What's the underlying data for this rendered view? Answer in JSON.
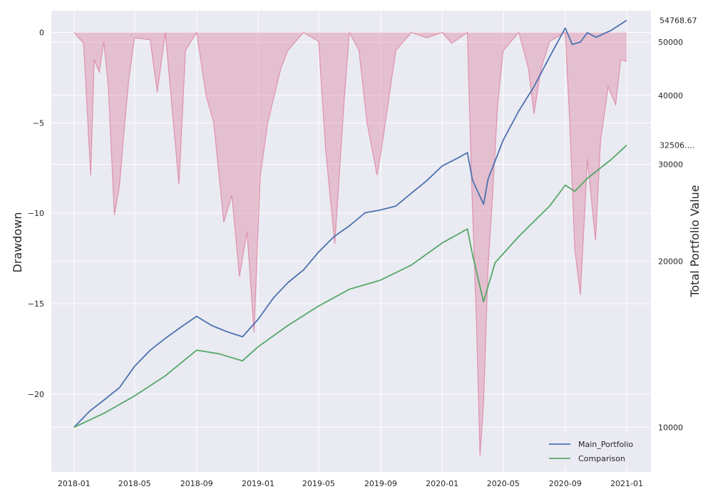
{
  "chart_data": {
    "type": "line",
    "title": "",
    "xlabel": "",
    "ylabel_left": "Drawdown",
    "ylabel_right": "Total Portfolio Value",
    "xlim": [
      "2017-11-17",
      "2021-02-18"
    ],
    "ylim_left": [
      -24.3,
      1.2
    ],
    "ylim_right": [
      8300,
      57000
    ],
    "x_ticks": [
      "2018-01",
      "2018-05",
      "2018-09",
      "2019-01",
      "2019-05",
      "2019-09",
      "2020-01",
      "2020-05",
      "2020-09",
      "2021-01"
    ],
    "y_ticks_left": [
      0,
      -5,
      -10,
      -15,
      -20
    ],
    "y_ticks_left_labels": [
      "0",
      "−5",
      "−10",
      "−15",
      "−20"
    ],
    "y_ticks_right": [
      10000,
      20000,
      30000,
      40000,
      50000
    ],
    "y_ticks_right_labels": [
      "10000",
      "20000",
      "30000",
      "40000",
      "50000"
    ],
    "end_value_labels": [
      "54768.67",
      "32506.…"
    ],
    "grid": true,
    "legend_position": "lower-right",
    "series": [
      {
        "name": "Main_Portfolio",
        "axis": "right",
        "color": "#4c72b0",
        "points": [
          [
            "2018-01-01",
            10000
          ],
          [
            "2018-02-01",
            10700
          ],
          [
            "2018-03-01",
            11200
          ],
          [
            "2018-04-01",
            11800
          ],
          [
            "2018-05-01",
            12900
          ],
          [
            "2018-06-01",
            13800
          ],
          [
            "2018-07-01",
            14500
          ],
          [
            "2018-08-01",
            15200
          ],
          [
            "2018-09-01",
            15900
          ],
          [
            "2018-10-01",
            15300
          ],
          [
            "2018-11-01",
            14900
          ],
          [
            "2018-12-01",
            14600
          ],
          [
            "2019-01-01",
            15700
          ],
          [
            "2019-02-01",
            17200
          ],
          [
            "2019-03-01",
            18300
          ],
          [
            "2019-04-01",
            19300
          ],
          [
            "2019-05-01",
            20800
          ],
          [
            "2019-06-01",
            22200
          ],
          [
            "2019-07-01",
            23200
          ],
          [
            "2019-08-01",
            24500
          ],
          [
            "2019-09-01",
            24800
          ],
          [
            "2019-10-01",
            25200
          ],
          [
            "2019-11-01",
            26600
          ],
          [
            "2019-12-01",
            28000
          ],
          [
            "2020-01-01",
            29800
          ],
          [
            "2020-02-01",
            30800
          ],
          [
            "2020-02-20",
            31500
          ],
          [
            "2020-03-01",
            28100
          ],
          [
            "2020-03-23",
            25400
          ],
          [
            "2020-04-01",
            28200
          ],
          [
            "2020-05-01",
            33200
          ],
          [
            "2020-06-01",
            37500
          ],
          [
            "2020-07-01",
            41500
          ],
          [
            "2020-08-01",
            47000
          ],
          [
            "2020-09-01",
            53000
          ],
          [
            "2020-09-15",
            49500
          ],
          [
            "2020-10-01",
            50000
          ],
          [
            "2020-10-15",
            52000
          ],
          [
            "2020-11-01",
            51000
          ],
          [
            "2020-12-01",
            52500
          ],
          [
            "2021-01-01",
            54768.67
          ]
        ]
      },
      {
        "name": "Comparison",
        "axis": "right",
        "color": "#55a868",
        "points": [
          [
            "2018-01-01",
            10000
          ],
          [
            "2018-03-01",
            10600
          ],
          [
            "2018-05-01",
            11400
          ],
          [
            "2018-07-01",
            12400
          ],
          [
            "2018-09-01",
            13800
          ],
          [
            "2018-10-15",
            13600
          ],
          [
            "2018-12-01",
            13200
          ],
          [
            "2019-01-01",
            14000
          ],
          [
            "2019-03-01",
            15300
          ],
          [
            "2019-05-01",
            16600
          ],
          [
            "2019-07-01",
            17800
          ],
          [
            "2019-09-01",
            18500
          ],
          [
            "2019-11-01",
            19700
          ],
          [
            "2020-01-01",
            21600
          ],
          [
            "2020-02-20",
            22900
          ],
          [
            "2020-03-01",
            20600
          ],
          [
            "2020-03-23",
            16900
          ],
          [
            "2020-04-15",
            19900
          ],
          [
            "2020-06-01",
            22200
          ],
          [
            "2020-08-01",
            25200
          ],
          [
            "2020-09-01",
            27500
          ],
          [
            "2020-09-20",
            26800
          ],
          [
            "2020-10-15",
            28300
          ],
          [
            "2020-12-01",
            30600
          ],
          [
            "2021-01-01",
            32506
          ]
        ]
      },
      {
        "name": "Drawdown",
        "axis": "left",
        "color": "#dd8ca6",
        "points": [
          [
            "2018-01-01",
            0
          ],
          [
            "2018-01-20",
            -0.6
          ],
          [
            "2018-02-03",
            -7.9
          ],
          [
            "2018-02-10",
            -1.5
          ],
          [
            "2018-02-20",
            -2.2
          ],
          [
            "2018-03-01",
            -0.5
          ],
          [
            "2018-03-10",
            -3.0
          ],
          [
            "2018-03-22",
            -10.1
          ],
          [
            "2018-04-01",
            -8.5
          ],
          [
            "2018-04-10",
            -5.5
          ],
          [
            "2018-04-20",
            -2.5
          ],
          [
            "2018-05-01",
            -0.3
          ],
          [
            "2018-06-01",
            -0.4
          ],
          [
            "2018-06-15",
            -3.3
          ],
          [
            "2018-07-01",
            0
          ],
          [
            "2018-07-28",
            -8.4
          ],
          [
            "2018-08-10",
            -1.0
          ],
          [
            "2018-09-01",
            0
          ],
          [
            "2018-09-20",
            -3.5
          ],
          [
            "2018-10-05",
            -5.0
          ],
          [
            "2018-10-25",
            -10.5
          ],
          [
            "2018-11-10",
            -9.0
          ],
          [
            "2018-11-25",
            -13.5
          ],
          [
            "2018-12-10",
            -11.0
          ],
          [
            "2018-12-24",
            -16.6
          ],
          [
            "2019-01-05",
            -8.0
          ],
          [
            "2019-01-20",
            -5.0
          ],
          [
            "2019-02-15",
            -2.0
          ],
          [
            "2019-03-01",
            -1.0
          ],
          [
            "2019-04-01",
            0
          ],
          [
            "2019-05-01",
            -0.5
          ],
          [
            "2019-05-15",
            -6.5
          ],
          [
            "2019-06-02",
            -11.7
          ],
          [
            "2019-06-20",
            -4.0
          ],
          [
            "2019-07-01",
            0
          ],
          [
            "2019-07-20",
            -1.0
          ],
          [
            "2019-08-05",
            -5.0
          ],
          [
            "2019-08-25",
            -7.9
          ],
          [
            "2019-09-05",
            -6.0
          ],
          [
            "2019-10-01",
            -1.0
          ],
          [
            "2019-11-01",
            0
          ],
          [
            "2019-12-01",
            -0.3
          ],
          [
            "2020-01-01",
            0
          ],
          [
            "2020-01-20",
            -0.6
          ],
          [
            "2020-02-05",
            -0.3
          ],
          [
            "2020-02-20",
            0
          ],
          [
            "2020-02-28",
            -8.0
          ],
          [
            "2020-03-09",
            -16.0
          ],
          [
            "2020-03-16",
            -23.4
          ],
          [
            "2020-03-23",
            -20.5
          ],
          [
            "2020-04-01",
            -13.0
          ],
          [
            "2020-04-10",
            -9.0
          ],
          [
            "2020-04-20",
            -4.0
          ],
          [
            "2020-05-01",
            -1.0
          ],
          [
            "2020-06-01",
            0
          ],
          [
            "2020-06-20",
            -2.0
          ],
          [
            "2020-07-01",
            -4.5
          ],
          [
            "2020-07-15",
            -2.0
          ],
          [
            "2020-08-01",
            -0.5
          ],
          [
            "2020-09-01",
            0
          ],
          [
            "2020-09-10",
            -5.0
          ],
          [
            "2020-09-20",
            -12.0
          ],
          [
            "2020-10-01",
            -14.5
          ],
          [
            "2020-10-15",
            -7.0
          ],
          [
            "2020-10-31",
            -11.5
          ],
          [
            "2020-11-10",
            -6.0
          ],
          [
            "2020-11-25",
            -3.0
          ],
          [
            "2020-12-10",
            -4.0
          ],
          [
            "2020-12-20",
            -1.5
          ],
          [
            "2021-01-01",
            -1.6
          ]
        ]
      }
    ]
  }
}
